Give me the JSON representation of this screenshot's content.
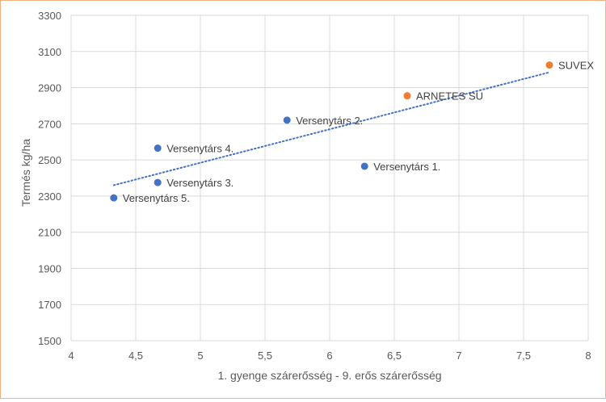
{
  "chart_data": {
    "type": "scatter",
    "title": "",
    "xlabel": "1. gyenge szárerősség - 9. erős szárerősség",
    "ylabel": "Termés kg/ha",
    "xlim": [
      4,
      8
    ],
    "ylim": [
      1500,
      3300
    ],
    "x_ticks": [
      "4",
      "4,5",
      "5",
      "5,5",
      "6",
      "6,5",
      "7",
      "7,5",
      "8"
    ],
    "y_ticks": [
      "1500",
      "1700",
      "1900",
      "2100",
      "2300",
      "2500",
      "2700",
      "2900",
      "3100",
      "3300"
    ],
    "grid": true,
    "legend": "none",
    "points": [
      {
        "label": "SUVEX",
        "x": 7.7,
        "y": 3025,
        "color": "#ed7d31"
      },
      {
        "label": "ARNETES SU",
        "x": 6.6,
        "y": 2855,
        "color": "#ed7d31"
      },
      {
        "label": "Versenytárs 2.",
        "x": 5.67,
        "y": 2720,
        "color": "#4472c4"
      },
      {
        "label": "Versenytárs 1.",
        "x": 6.27,
        "y": 2465,
        "color": "#4472c4"
      },
      {
        "label": "Versenytárs 4.",
        "x": 4.67,
        "y": 2565,
        "color": "#4472c4"
      },
      {
        "label": "Versenytárs 3.",
        "x": 4.67,
        "y": 2375,
        "color": "#4472c4"
      },
      {
        "label": "Versenytárs 5.",
        "x": 4.33,
        "y": 2290,
        "color": "#4472c4"
      }
    ],
    "trendline": {
      "type": "linear",
      "x0": 4.33,
      "y0": 2360,
      "x1": 7.7,
      "y1": 2985,
      "style": "dotted",
      "color": "#4472c4"
    },
    "colors": {
      "grid": "#d9d9d9",
      "axis_text": "#595959",
      "border": "#f4b183"
    }
  }
}
